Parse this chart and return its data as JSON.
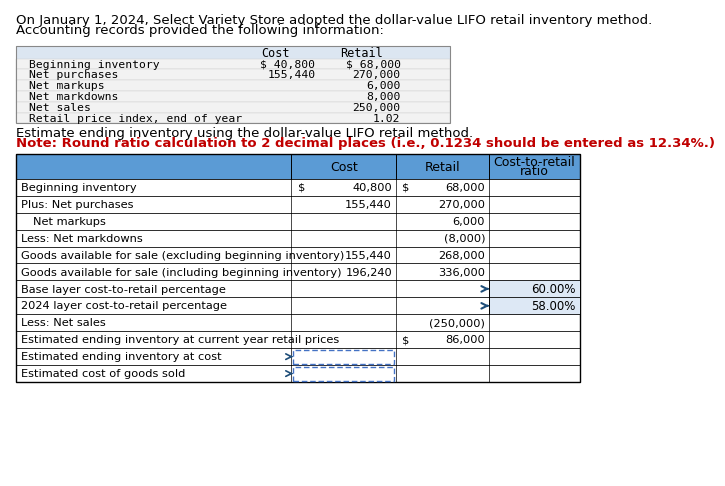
{
  "intro_line1": "On January 1, 2024, Select Variety Store adopted the dollar-value LIFO retail inventory method.",
  "intro_line2": "Accounting records provided the following information:",
  "top_table_rows": [
    [
      "Beginning inventory",
      "$ 40,800",
      "$ 68,000"
    ],
    [
      "Net purchases",
      "155,440",
      "270,000"
    ],
    [
      "Net markups",
      "",
      "6,000"
    ],
    [
      "Net markdowns",
      "",
      "8,000"
    ],
    [
      "Net sales",
      "",
      "250,000"
    ],
    [
      "Retail price index, end of year",
      "",
      "1.02"
    ]
  ],
  "inst_line1": "Estimate ending inventory using the dollar-value LIFO retail method.",
  "inst_line2": "Note: Round ratio calculation to 2 decimal places (i.e., 0.1234 should be entered as 12.34%.)",
  "bottom_rows": [
    {
      "label": "Beginning inventory",
      "cost": "40,800",
      "cost_dollar": true,
      "retail": "68,000",
      "retail_dollar": true,
      "ratio": "",
      "indent": false,
      "input": false
    },
    {
      "label": "Plus: Net purchases",
      "cost": "155,440",
      "cost_dollar": false,
      "retail": "270,000",
      "retail_dollar": false,
      "ratio": "",
      "indent": false,
      "input": false
    },
    {
      "label": "Net markups",
      "cost": "",
      "cost_dollar": false,
      "retail": "6,000",
      "retail_dollar": false,
      "ratio": "",
      "indent": true,
      "input": false
    },
    {
      "label": "Less: Net markdowns",
      "cost": "",
      "cost_dollar": false,
      "retail": "(8,000)",
      "retail_dollar": false,
      "ratio": "",
      "indent": false,
      "input": false
    },
    {
      "label": "Goods available for sale (excluding beginning inventory)",
      "cost": "155,440",
      "cost_dollar": false,
      "retail": "268,000",
      "retail_dollar": false,
      "ratio": "",
      "indent": false,
      "input": false
    },
    {
      "label": "Goods available for sale (including beginning inventory)",
      "cost": "196,240",
      "cost_dollar": false,
      "retail": "336,000",
      "retail_dollar": false,
      "ratio": "",
      "indent": false,
      "input": false
    },
    {
      "label": "Base layer cost-to-retail percentage",
      "cost": "",
      "cost_dollar": false,
      "retail": "",
      "retail_dollar": false,
      "ratio": "60.00%",
      "indent": false,
      "input": false
    },
    {
      "label": "2024 layer cost-to-retail percentage",
      "cost": "",
      "cost_dollar": false,
      "retail": "",
      "retail_dollar": false,
      "ratio": "58.00%",
      "indent": false,
      "input": false
    },
    {
      "label": "Less: Net sales",
      "cost": "",
      "cost_dollar": false,
      "retail": "(250,000)",
      "retail_dollar": false,
      "ratio": "",
      "indent": false,
      "input": false
    },
    {
      "label": "Estimated ending inventory at current year retail prices",
      "cost": "",
      "cost_dollar": false,
      "retail": "86,000",
      "retail_dollar": true,
      "ratio": "",
      "indent": false,
      "input": false
    },
    {
      "label": "Estimated ending inventory at cost",
      "cost": "",
      "cost_dollar": false,
      "retail": "",
      "retail_dollar": false,
      "ratio": "",
      "indent": false,
      "input": true
    },
    {
      "label": "Estimated cost of goods sold",
      "cost": "",
      "cost_dollar": false,
      "retail": "",
      "retail_dollar": false,
      "ratio": "",
      "indent": false,
      "input": true
    }
  ],
  "colors": {
    "top_header_bg": "#dce6f1",
    "top_row_bg": "#f2f2f2",
    "bottom_header_bg": "#5b9bd5",
    "input_box": "#4472c4",
    "ratio_bg": "#5b9bd5",
    "red": "#c00000",
    "arrow": "#1f4e79"
  }
}
